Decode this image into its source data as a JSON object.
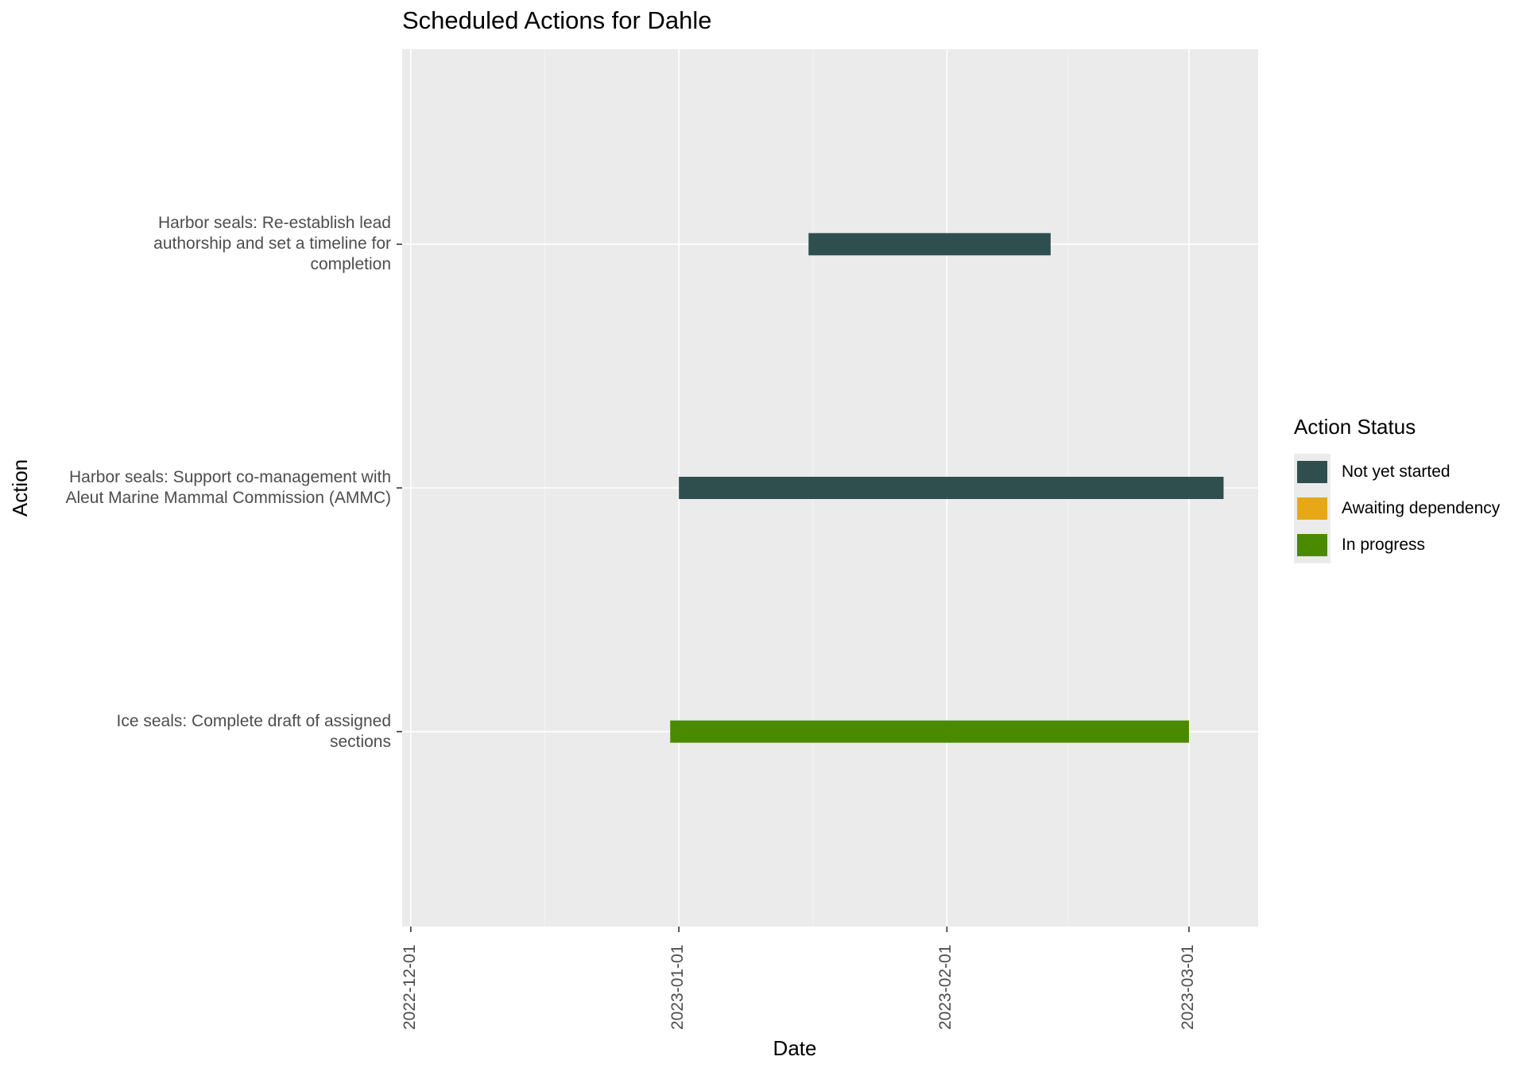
{
  "chart_data": {
    "type": "gantt",
    "title": "Scheduled Actions for Dahle",
    "xlabel": "Date",
    "ylabel": "Action",
    "xlim": [
      "2022-11-30",
      "2023-03-09"
    ],
    "x_ticks": [
      "2022-12-01",
      "2023-01-01",
      "2023-02-01",
      "2023-03-01"
    ],
    "grid": true,
    "legend_position": "right",
    "legend_title": "Action Status",
    "legend": [
      {
        "label": "Not yet started",
        "color": "#2f4f4f"
      },
      {
        "label": "Awaiting dependency",
        "color": "#e6a817"
      },
      {
        "label": "In progress",
        "color": "#4a8a00"
      }
    ],
    "tasks": [
      {
        "label": "Harbor seals: Re-establish lead\nauthorship and set a timeline for\ncompletion",
        "start": "2023-01-16",
        "end": "2023-02-13",
        "status": "Not yet started",
        "color": "#2f4f4f"
      },
      {
        "label": "Harbor seals: Support co-management with\nAleut Marine Mammal Commission (AMMC)",
        "start": "2023-01-01",
        "end": "2023-03-05",
        "status": "Not yet started",
        "color": "#2f4f4f"
      },
      {
        "label": "Ice seals: Complete draft of assigned\nsections",
        "start": "2022-12-31",
        "end": "2023-03-01",
        "status": "In progress",
        "color": "#4a8a00"
      }
    ]
  }
}
